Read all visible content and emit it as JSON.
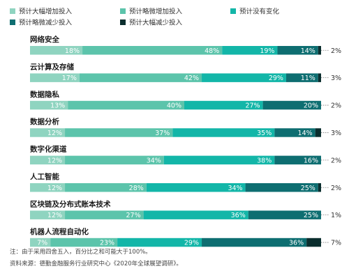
{
  "chart_data": {
    "type": "bar",
    "orientation": "horizontal",
    "stacked": true,
    "categories": [
      "网络安全",
      "云计算及存储",
      "数据隐私",
      "数据分析",
      "数字化渠道",
      "人工智能",
      "区块链及分布式账本技术",
      "机器人流程自动化"
    ],
    "series": [
      {
        "name": "预计大幅增加投入",
        "color": "#8fd4c0",
        "values": [
          18,
          17,
          13,
          12,
          12,
          12,
          12,
          7
        ]
      },
      {
        "name": "预计略微增加投入",
        "color": "#5cc4ab",
        "values": [
          48,
          42,
          40,
          37,
          34,
          28,
          27,
          23
        ]
      },
      {
        "name": "预计没有变化",
        "color": "#13b6a8",
        "values": [
          19,
          29,
          27,
          35,
          38,
          34,
          36,
          29
        ]
      },
      {
        "name": "预计略微减少投入",
        "color": "#0e6e71",
        "values": [
          14,
          11,
          20,
          14,
          16,
          25,
          25,
          36
        ]
      },
      {
        "name": "预计大幅减少投入",
        "color": "#0b2e2e",
        "values": [
          2,
          3,
          2,
          3,
          2,
          2,
          1,
          7
        ]
      }
    ],
    "legend_position": "top-left",
    "data_label_suffix": "%"
  },
  "footnotes": {
    "note": "注：由于采用四舍五入，百分比之和可能大于100%。",
    "source": "资料来源：德勤金融服务行业研究中心《2020年全球展望调研》。"
  }
}
